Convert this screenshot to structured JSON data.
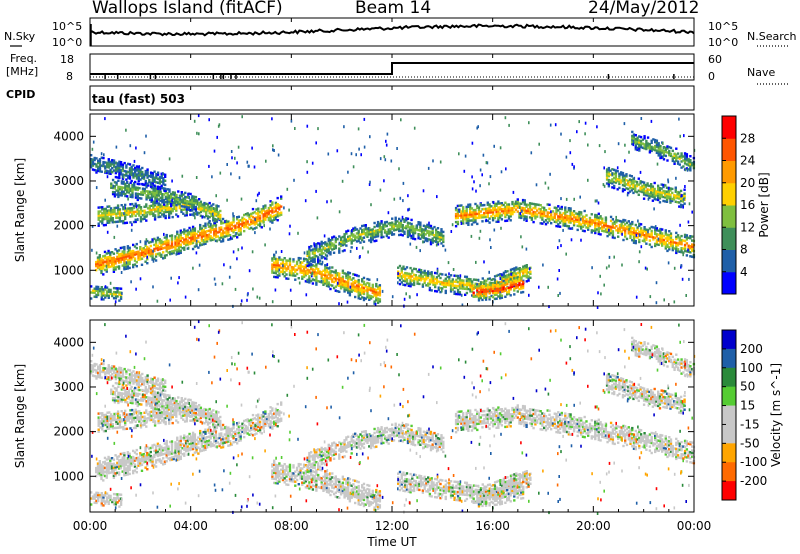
{
  "header": {
    "station": "Wallops Island (fitACF)",
    "beam": "Beam 14",
    "date": "24/May/2012"
  },
  "panels": {
    "nsky_label": "N.Sky",
    "nsky_ticks": [
      "10^5",
      "10^0"
    ],
    "nsearch_label": "N.Search",
    "nsearch_ticks": [
      "10^5",
      "10^0"
    ],
    "freq_label_1": "Freq.",
    "freq_label_2": "[MHz]",
    "freq_ticks": [
      "18",
      "8"
    ],
    "nave_label": "Nave",
    "nave_ticks": [
      "60",
      "0"
    ],
    "cpid_label": "CPID",
    "cpid_value": "tau (fast) 503"
  },
  "colors": {
    "power": [
      "#0000ff",
      "#1f5fa8",
      "#3f8f5a",
      "#7fbf3f",
      "#ffd000",
      "#ff9a00",
      "#ff5500",
      "#ff0000"
    ],
    "velocity": [
      "#ff0000",
      "#ff6a00",
      "#ffa500",
      "#c8c8c8",
      "#c8c8c8",
      "#55cc33",
      "#2a8a3a",
      "#1f5fa8",
      "#0000cc"
    ]
  },
  "chart_data": [
    {
      "type": "heatmap",
      "quantity": "Power",
      "xlabel": "Time UT",
      "ylabel": "Slant Range [km]",
      "x_ticks": [
        "00:00",
        "04:00",
        "08:00",
        "12:00",
        "16:00",
        "20:00",
        "00:00"
      ],
      "y_ticks": [
        1000,
        2000,
        3000,
        4000
      ],
      "ylim": [
        200,
        4500
      ],
      "colorbar_label": "Power [dB]",
      "colorbar_ticks": [
        4,
        8,
        12,
        16,
        20,
        24,
        28
      ],
      "bands": [
        {
          "t": [
            0.2,
            2.0,
            4.0,
            6.0,
            7.6
          ],
          "r": [
            1100,
            1350,
            1700,
            2000,
            2400
          ],
          "width": 250,
          "peak": 26
        },
        {
          "t": [
            0.3,
            2.0,
            4.0,
            5.2
          ],
          "r": [
            2200,
            2300,
            2450,
            2200
          ],
          "width": 220,
          "peak": 18
        },
        {
          "t": [
            0.8,
            2.5,
            4.2
          ],
          "r": [
            2850,
            2700,
            2500
          ],
          "width": 200,
          "peak": 14
        },
        {
          "t": [
            7.2,
            8.5,
            10.2,
            11.5
          ],
          "r": [
            1100,
            1000,
            700,
            450
          ],
          "width": 260,
          "peak": 24
        },
        {
          "t": [
            8.6,
            10.5,
            12.3,
            14.0
          ],
          "r": [
            1300,
            1750,
            2000,
            1700
          ],
          "width": 220,
          "peak": 15
        },
        {
          "t": [
            12.2,
            14.0,
            15.8,
            17.5
          ],
          "r": [
            900,
            700,
            600,
            1000
          ],
          "width": 220,
          "peak": 20
        },
        {
          "t": [
            15.2,
            16.2,
            17.2
          ],
          "r": [
            500,
            550,
            700
          ],
          "width": 200,
          "peak": 29
        },
        {
          "t": [
            14.5,
            17.0,
            20.0,
            22.5,
            24.0
          ],
          "r": [
            2200,
            2350,
            2050,
            1700,
            1500
          ],
          "width": 230,
          "peak": 24
        },
        {
          "t": [
            20.5,
            22.0,
            23.6
          ],
          "r": [
            3100,
            2800,
            2600
          ],
          "width": 220,
          "peak": 18
        },
        {
          "t": [
            21.5,
            23.0,
            24.0
          ],
          "r": [
            3900,
            3600,
            3300
          ],
          "width": 180,
          "peak": 14
        },
        {
          "t": [
            0.0,
            1.5,
            3.0
          ],
          "r": [
            3400,
            3200,
            2950
          ],
          "width": 200,
          "peak": 10
        },
        {
          "t": [
            0.0,
            1.2
          ],
          "r": [
            500,
            450
          ],
          "width": 150,
          "peak": 16
        }
      ]
    },
    {
      "type": "heatmap",
      "quantity": "Velocity",
      "xlabel": "Time UT",
      "ylabel": "Slant Range [km]",
      "x_ticks": [
        "00:00",
        "04:00",
        "08:00",
        "12:00",
        "16:00",
        "20:00",
        "00:00"
      ],
      "y_ticks": [
        1000,
        2000,
        3000,
        4000
      ],
      "ylim": [
        200,
        4500
      ],
      "colorbar_label": "Velocity [m s^-1]",
      "colorbar_ticks": [
        200,
        100,
        50,
        15,
        -15,
        -50,
        -100,
        -200
      ],
      "dominant_value": 0,
      "bands_ref": "same as Power panel"
    }
  ]
}
